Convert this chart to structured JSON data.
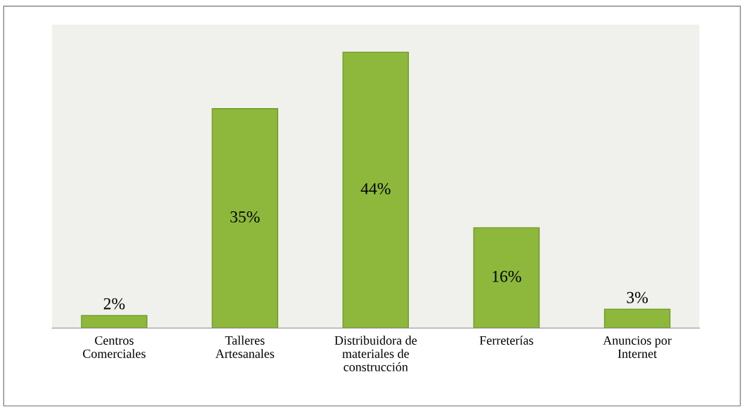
{
  "chart_data": {
    "type": "bar",
    "categories": [
      "Centros\nComerciales",
      "Talleres\nArtesanales",
      "Distribuidora de\nmateriales de\nconstrucción",
      "Ferreterías",
      "Anuncios por\nInternet"
    ],
    "values": [
      2,
      35,
      44,
      16,
      3
    ],
    "color": "#8db83c",
    "data_labels": true,
    "value_labels": [
      "2%",
      "35%",
      "44%",
      "16%",
      "3%"
    ]
  }
}
